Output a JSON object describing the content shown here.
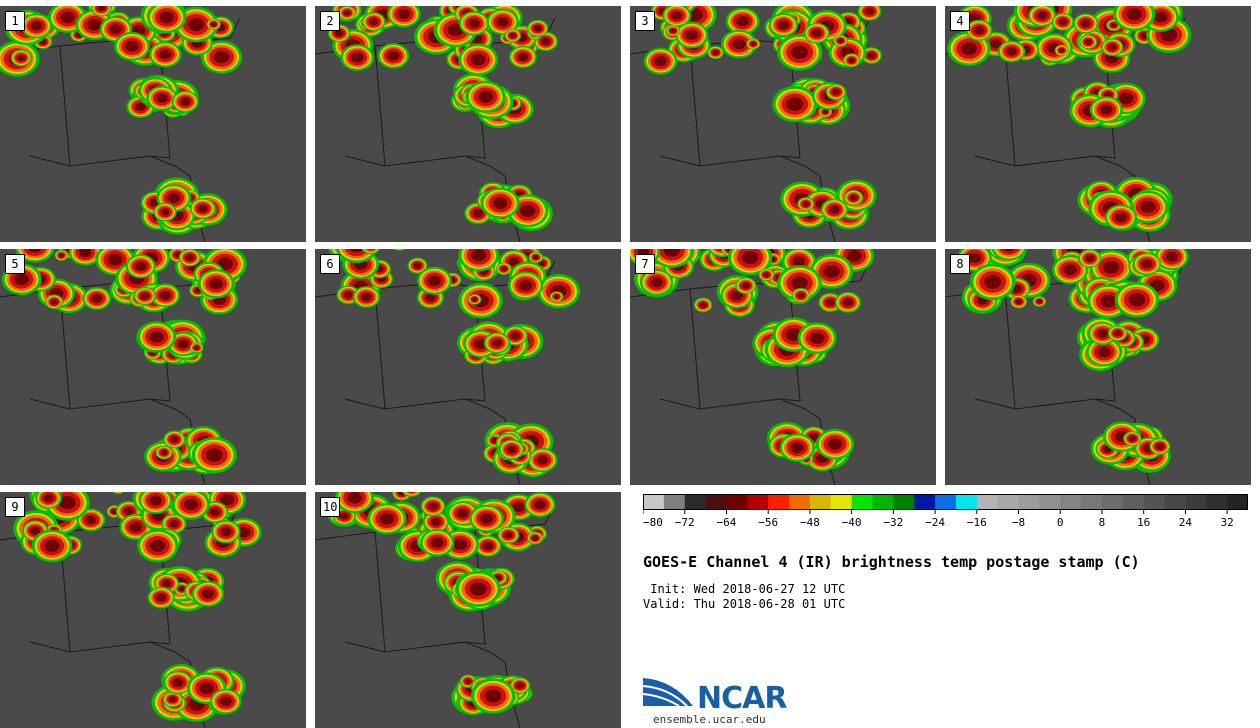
{
  "panels": [
    {
      "label": "1"
    },
    {
      "label": "2"
    },
    {
      "label": "3"
    },
    {
      "label": "4"
    },
    {
      "label": "5"
    },
    {
      "label": "6"
    },
    {
      "label": "7"
    },
    {
      "label": "8"
    },
    {
      "label": "9"
    },
    {
      "label": "10"
    }
  ],
  "colorbar": {
    "ticks": [
      "−80",
      "−72",
      "−64",
      "−56",
      "−48",
      "−40",
      "−32",
      "−24",
      "−16",
      "−8",
      "0",
      "8",
      "16",
      "24",
      "32"
    ],
    "colors": [
      "#c8c8c8",
      "#7f7f7f",
      "#2b2b2b",
      "#4a1010",
      "#6e0000",
      "#b40000",
      "#ff2000",
      "#f26d00",
      "#d9b400",
      "#e5e500",
      "#00e600",
      "#00b400",
      "#008000",
      "#0018a8",
      "#0a6ee6",
      "#00e6f0",
      "#b4b4b4",
      "#a8a8a8",
      "#9c9c9c",
      "#909090",
      "#848484",
      "#787878",
      "#6c6c6c",
      "#606060",
      "#545454",
      "#484848",
      "#3c3c3c",
      "#303030",
      "#242424"
    ]
  },
  "title": "GOES-E Channel 4 (IR) brightness temp postage stamp (C)",
  "init": " Init: Wed 2018-06-27 12 UTC",
  "valid": "Valid: Thu 2018-06-28 01 UTC",
  "logo": {
    "text": "NCAR",
    "url": "ensemble.ucar.edu"
  }
}
